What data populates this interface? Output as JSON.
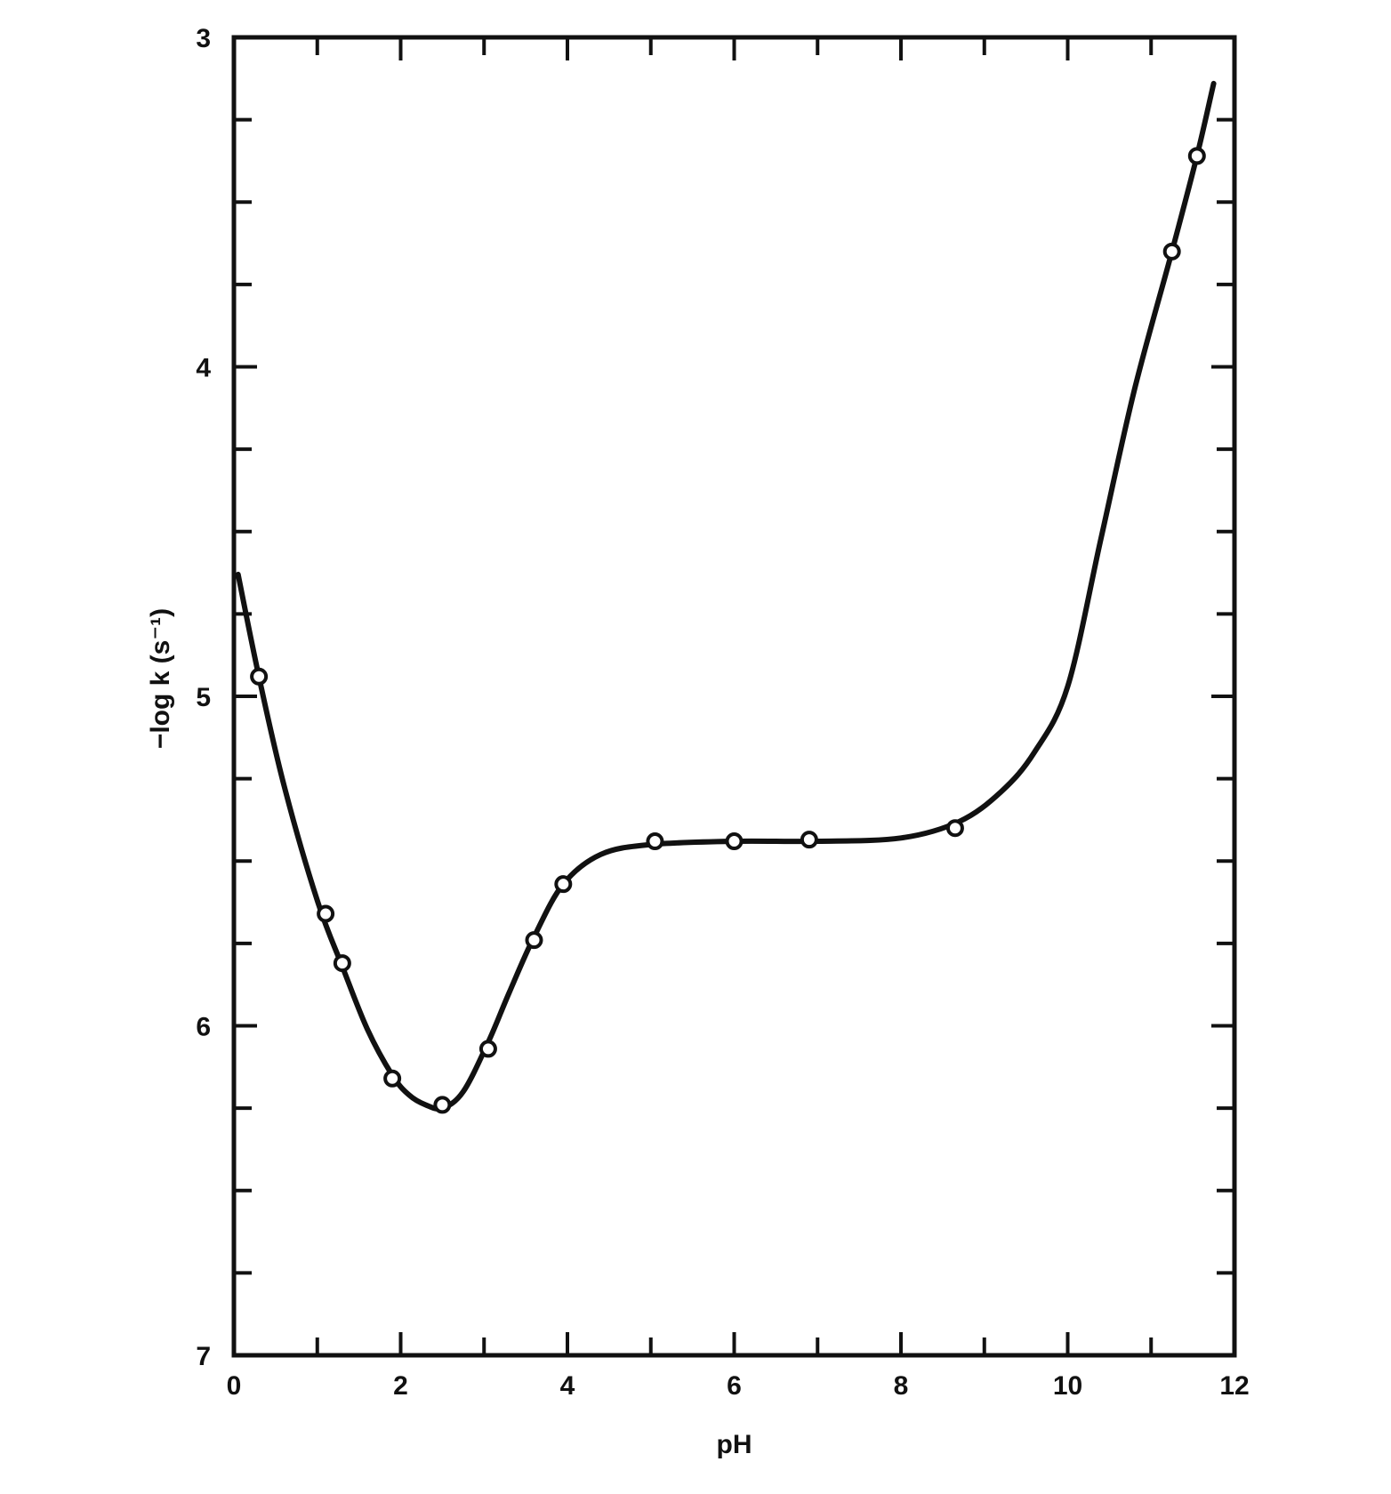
{
  "chart_data": {
    "type": "scatter",
    "title": "",
    "xlabel": "pH",
    "ylabel": "−log k (s⁻¹)",
    "xlim": [
      0,
      12
    ],
    "ylim": [
      3,
      7
    ],
    "y_inverted": true,
    "x_ticks": [
      "0",
      "2",
      "4",
      "6",
      "8",
      "10",
      "12"
    ],
    "y_ticks": [
      "3",
      "4",
      "5",
      "6",
      "7"
    ],
    "grid": false,
    "legend": "none",
    "colors": {
      "ink": "#111111",
      "background": "#ffffff",
      "marker_fill": "#ffffff"
    },
    "series": [
      {
        "kind": "points",
        "marker": "open-circle",
        "x": [
          0.3,
          1.1,
          1.3,
          1.9,
          2.5,
          3.05,
          3.6,
          3.95,
          5.05,
          6.0,
          6.9,
          8.65,
          11.25,
          11.55
        ],
        "y": [
          4.94,
          5.66,
          5.81,
          6.16,
          6.24,
          6.07,
          5.74,
          5.57,
          5.44,
          5.44,
          5.435,
          5.4,
          3.65,
          3.36
        ]
      },
      {
        "kind": "curve",
        "x": [
          0.05,
          0.3,
          0.6,
          1.0,
          1.3,
          1.6,
          1.9,
          2.1,
          2.3,
          2.5,
          2.75,
          3.05,
          3.3,
          3.6,
          3.95,
          4.4,
          5.0,
          6.0,
          7.0,
          8.0,
          8.7,
          9.2,
          9.6,
          10.0,
          10.4,
          10.8,
          11.25,
          11.55,
          11.75
        ],
        "y": [
          4.63,
          4.94,
          5.27,
          5.62,
          5.82,
          6.01,
          6.15,
          6.21,
          6.24,
          6.25,
          6.2,
          6.05,
          5.9,
          5.73,
          5.57,
          5.48,
          5.45,
          5.44,
          5.44,
          5.43,
          5.38,
          5.29,
          5.17,
          4.97,
          4.52,
          4.07,
          3.65,
          3.36,
          3.14
        ]
      }
    ]
  }
}
